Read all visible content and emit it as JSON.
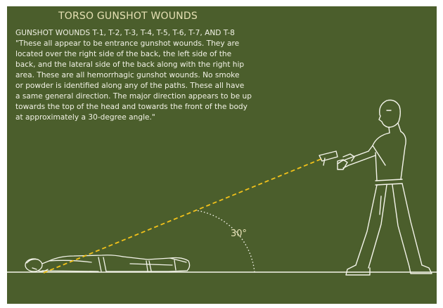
{
  "diagram": {
    "title": "TORSO GUNSHOT WOUNDS",
    "heading": "GUNSHOT WOUNDS T-1, T-2, T-3, T-4, T-5, T-6, T-7, AND T-8",
    "quote_lines": [
      "\"These all appear to be entrance gunshot wounds.  They are",
      "located over the right side of the back, the left side of the",
      "back, and the lateral side of the back along with the right hip",
      "area.  These are all hemorrhagic gunshot wounds.  No smoke",
      "or powder is identified along any of the paths.  These all have",
      "a same general direction.  The major direction appears to be up",
      "towards the top of the head and towards the front of the body",
      "at approximately a 30-degree angle.\""
    ],
    "angle_label": "30°",
    "colors": {
      "background": "#4b5e2c",
      "line_art": "#f4f4ea",
      "trajectory": "#f2c21a",
      "title": "#e6e0b4"
    }
  }
}
